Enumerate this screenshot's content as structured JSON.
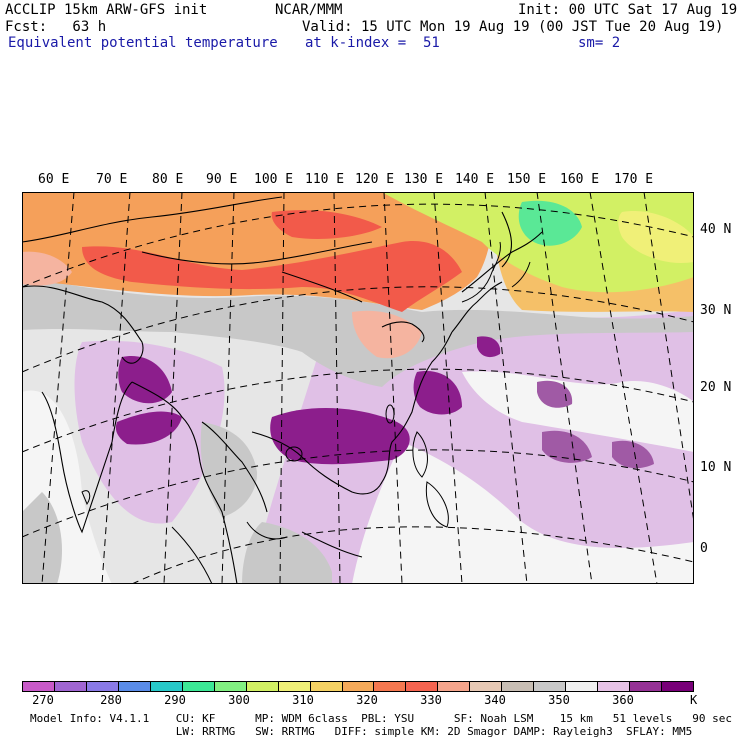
{
  "header": {
    "model_line": "ACCLIP 15km ARW-GFS init",
    "center": "NCAR/MMM",
    "init": "Init: 00 UTC Sat 17 Aug 19",
    "fcst": "Fcst:   63 h",
    "valid": "Valid: 15 UTC Mon 19 Aug 19 (00 JST Tue 20 Aug 19)",
    "field": "Equivalent potential temperature",
    "level": "at k-index =  51",
    "smooth": "sm= 2"
  },
  "map": {
    "lon_labels": [
      "60 E",
      "70 E",
      "80 E",
      "90 E",
      "100 E",
      "110 E",
      "120 E",
      "130 E",
      "140 E",
      "150 E",
      "160 E",
      "170 E"
    ],
    "lat_labels": [
      "40 N",
      "30 N",
      "20 N",
      "10 N",
      "0"
    ]
  },
  "colorbar": {
    "colors": [
      "#c85ac8",
      "#a066d2",
      "#8a7ae6",
      "#5a8ce8",
      "#28c8c8",
      "#3ce896",
      "#82f082",
      "#d2f064",
      "#f0f078",
      "#f5d264",
      "#f5aa5a",
      "#f57850",
      "#f56450",
      "#f5a58c",
      "#e6c8b4",
      "#c8beb4",
      "#c8c8c8",
      "#f0f0f0",
      "#e6c3e6",
      "#963296",
      "#780078"
    ],
    "tick_labels": [
      "270",
      "280",
      "290",
      "300",
      "310",
      "320",
      "330",
      "340",
      "350",
      "360"
    ],
    "unit": "K"
  },
  "footer": {
    "line1": "Model Info: V4.1.1    CU: KF      MP: WDM 6class  PBL: YSU      SF: Noah LSM    15 km   51 levels   90 sec",
    "line2": "                      LW: RRTMG   SW: RRTMG   DIFF: simple KM: 2D Smagor DAMP: Rayleigh3  SFLAY: MM5"
  },
  "colors": {
    "purple_dark": "#8c1e8c",
    "lilac": "#e0c0e6",
    "gray": "#c8c8c8",
    "white_area": "#f0f0f0",
    "red": "#f25a4a",
    "orange": "#f5a05a",
    "yellow_green": "#d2f064",
    "green": "#5ae896",
    "salmon": "#f5b4a0"
  }
}
